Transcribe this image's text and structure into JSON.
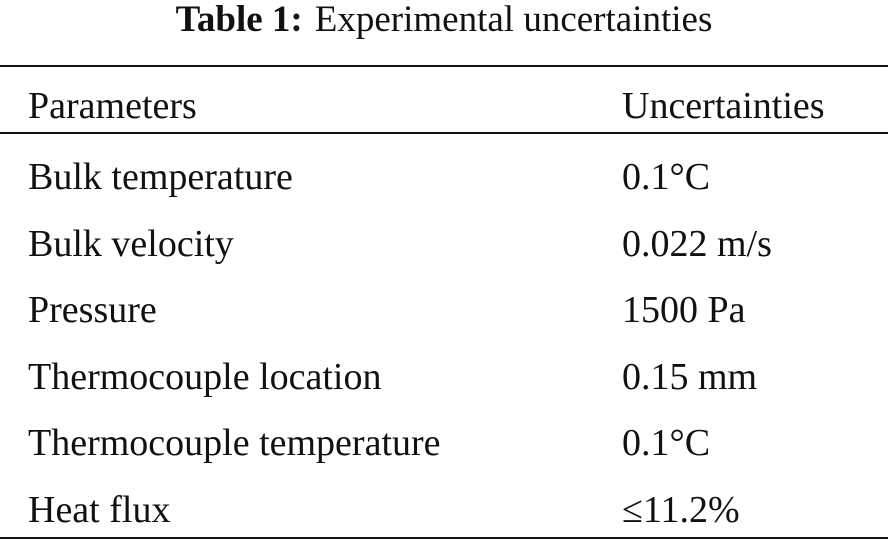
{
  "caption": {
    "label": "Table 1:",
    "title": "Experimental uncertainties"
  },
  "table": {
    "header": [
      "Parameters",
      "Uncertainties"
    ],
    "rows": [
      [
        "Bulk temperature",
        "0.1°C"
      ],
      [
        "Bulk velocity",
        "0.022 m/s"
      ],
      [
        "Pressure",
        "1500 Pa"
      ],
      [
        "Thermocouple location",
        "0.15 mm"
      ],
      [
        "Thermocouple temperature",
        "0.1°C"
      ],
      [
        "Heat flux",
        "≤11.2%"
      ]
    ]
  }
}
